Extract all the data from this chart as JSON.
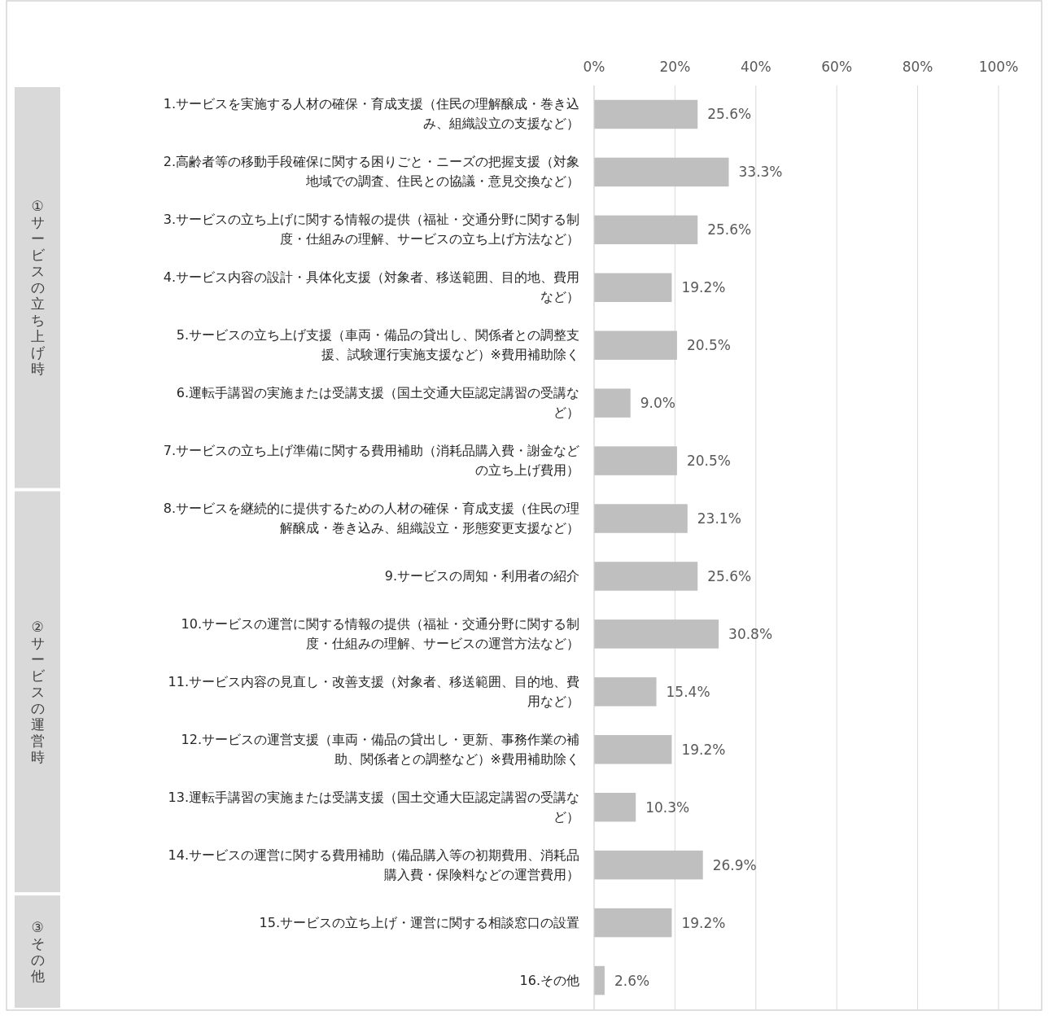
{
  "chart_data": {
    "type": "bar",
    "orientation": "horizontal",
    "categories": [
      "1.サービスを実施する人材の確保・育成支援（住民の理解醸成・巻き込み、組織設立の支援など）",
      "2.高齢者等の移動手段確保に関する困りごと・ニーズの把握支援（対象地域での調査、住民との協議・意見交換など）",
      "3.サービスの立ち上げに関する情報の提供（福祉・交通分野に関する制度・仕組みの理解、サービスの立ち上げ方法など）",
      "4.サービス内容の設計・具体化支援（対象者、移送範囲、目的地、費用など）",
      "5.サービスの立ち上げ支援（車両・備品の貸出し、関係者との調整支援、試験運行実施支援など）※費用補助除く",
      "6.運転手講習の実施または受講支援（国土交通大臣認定講習の受講など）",
      "7.サービスの立ち上げ準備に関する費用補助（消耗品購入費・謝金などの立ち上げ費用）",
      "8.サービスを継続的に提供するための人材の確保・育成支援（住民の理解醸成・巻き込み、組織設立・形態変更支援など）",
      "9.サービスの周知・利用者の紹介",
      "10.サービスの運営に関する情報の提供（福祉・交通分野に関する制度・仕組みの理解、サービスの運営方法など）",
      "11.サービス内容の見直し・改善支援（対象者、移送範囲、目的地、費用など）",
      "12.サービスの運営支援（車両・備品の貸出し・更新、事務作業の補助、関係者との調整など）※費用補助除く",
      "13.運転手講習の実施または受講支援（国土交通大臣認定講習の受講など）",
      "14.サービスの運営に関する費用補助（備品購入等の初期費用、消耗品購入費・保険料などの運営費用）",
      "15.サービスの立ち上げ・運営に関する相談窓口の設置",
      "16.その他"
    ],
    "values": [
      25.6,
      33.3,
      25.6,
      19.2,
      20.5,
      9.0,
      20.5,
      23.1,
      25.6,
      30.8,
      15.4,
      19.2,
      10.3,
      26.9,
      19.2,
      2.6
    ],
    "value_labels": [
      "25.6%",
      "33.3%",
      "25.6%",
      "19.2%",
      "20.5%",
      "9.0%",
      "20.5%",
      "23.1%",
      "25.6%",
      "30.8%",
      "15.4%",
      "19.2%",
      "10.3%",
      "26.9%",
      "19.2%",
      "2.6%"
    ],
    "color": "#bfbfbf",
    "xlim": [
      0,
      100
    ],
    "xticks": [
      {
        "value": 0,
        "label": "0%"
      },
      {
        "value": 20,
        "label": "20%"
      },
      {
        "value": 40,
        "label": "40%"
      },
      {
        "value": 60,
        "label": "60%"
      },
      {
        "value": 80,
        "label": "80%"
      },
      {
        "value": 100,
        "label": "100%"
      }
    ],
    "grid": "x",
    "annotations": [
      "①サービスの立ち上げ時",
      "②サービスの運営時",
      "③その他"
    ]
  }
}
